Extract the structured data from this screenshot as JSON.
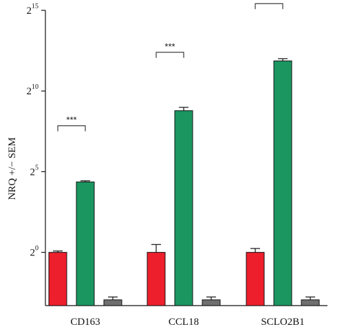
{
  "chart_data": {
    "type": "bar",
    "yscale": "log2",
    "ylabel": "NRQ +/− SEM",
    "ylim": [
      -3.3,
      15
    ],
    "yticks": [
      {
        "base": "2",
        "exp": "0",
        "value": 1
      },
      {
        "base": "2",
        "exp": "5",
        "value": 32
      },
      {
        "base": "2",
        "exp": "10",
        "value": 1024
      },
      {
        "base": "2",
        "exp": "15",
        "value": 32768
      }
    ],
    "categories": [
      "CD163",
      "CCL18",
      "SCLO2B1"
    ],
    "series": [
      {
        "color": "#ee1f2c",
        "values": [
          1,
          1,
          1
        ],
        "errors": [
          1.06,
          1.4,
          1.18
        ]
      },
      {
        "color": "#1b9660",
        "values": [
          20.6,
          440,
          3730
        ],
        "errors": [
          21.6,
          507,
          4100
        ]
      },
      {
        "color": "#6f6f6f",
        "values": [
          0.13,
          0.13,
          0.13
        ],
        "errors": [
          0.147,
          0.147,
          0.147
        ]
      }
    ],
    "significance": [
      {
        "category": "CD163",
        "label": "***"
      },
      {
        "category": "CCL18",
        "label": "***"
      },
      {
        "category": "SCLO2B1",
        "label": "***"
      }
    ],
    "grid": false,
    "legend": "none"
  }
}
